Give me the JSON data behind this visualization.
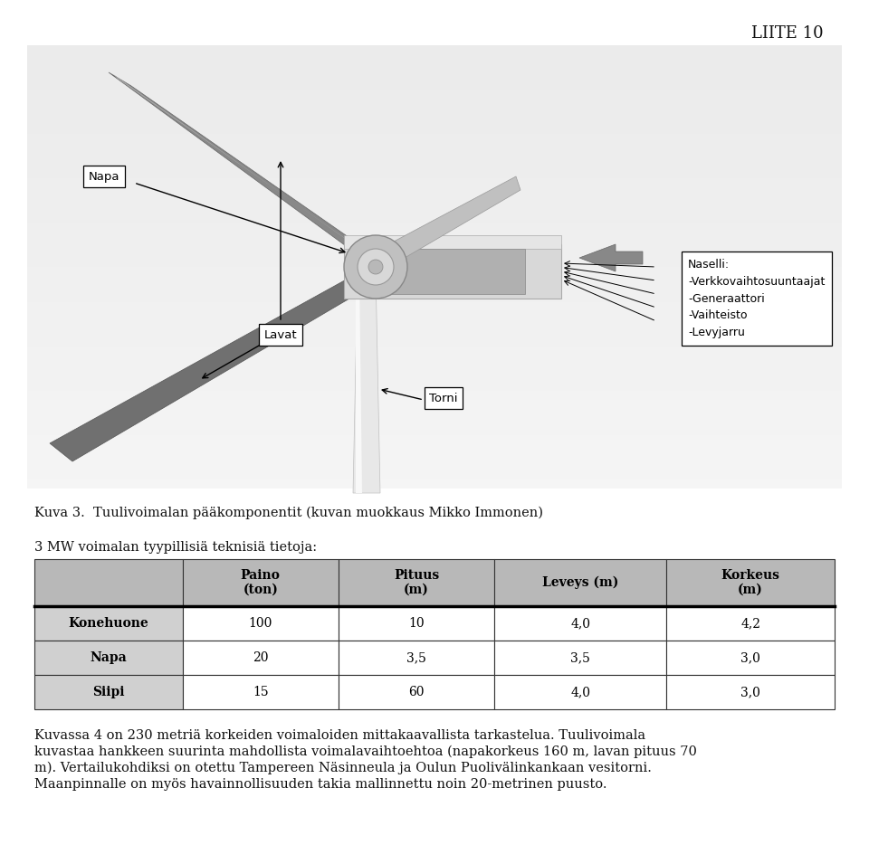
{
  "background_color": "#ffffff",
  "header_text": "LIITE 10",
  "header_fontsize": 13,
  "caption_text": "Kuva 3.  Tuulivoimalan pääkomponentit (kuvan muokkaus Mikko Immonen)",
  "caption_fontsize": 10.5,
  "subtitle_text": "3 MW voimalan tyypillisiä teknisiä tietoja:",
  "subtitle_fontsize": 10.5,
  "table_col_headers": [
    "Paino\n(ton)",
    "Pituus\n(m)",
    "Leveys (m)",
    "Korkeus\n(m)"
  ],
  "table_row_headers": [
    "Konehuone",
    "Napa",
    "Siipi"
  ],
  "table_data": [
    [
      "100",
      "10",
      "4,0",
      "4,2"
    ],
    [
      "20",
      "3,5",
      "3,5",
      "3,0"
    ],
    [
      "15",
      "60",
      "4,0",
      "3,0"
    ]
  ],
  "table_header_bg": "#b8b8b8",
  "table_row_bg": "#d0d0d0",
  "paragraph1_line1": "Kuvassa 4 on 230 metriä korkeiden voimaloiden mittakaavallista tarkastelua. Tuulivoimala",
  "paragraph1_line2": "kuvastaa hankkeen suurinta mahdollista voimalavaihtoehtoa (napakorkeus 160 m, lavan pituus 70",
  "paragraph1_line3": "m). Vertailukohdiksi on otettu Tampereen Näsinneula ja Oulun Puolivälinkankaan vesitorni.",
  "paragraph1_line4": "Maanpinnalle on myös havainnollisuuden takia mallinnettu noin 20-metrinen puusto.",
  "paragraph1_fontsize": 10.5,
  "label_napa": "Napa",
  "label_lavat": "Lavat",
  "label_torni": "Torni",
  "naselli_line1": "Naselli:",
  "naselli_line2": "-Verkkovaihtosuuntaajat",
  "naselli_line3": "-Generaattori",
  "naselli_line4": "-Vaihteisto",
  "naselli_line5": "-Levyjarru"
}
